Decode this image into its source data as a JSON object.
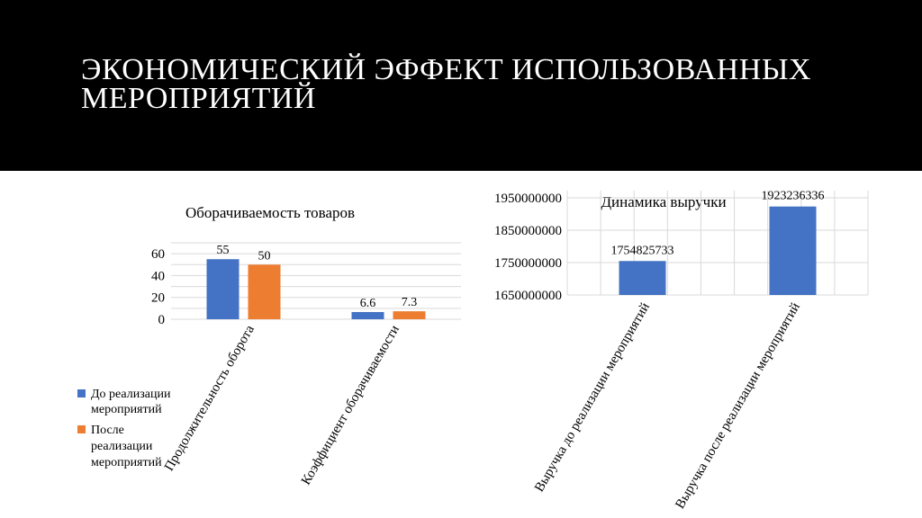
{
  "slide": {
    "title_line1": "ЭКОНОМИЧЕСКИЙ ЭФФЕКТ ИСПОЛЬЗОВАННЫХ",
    "title_line2": "МЕРОПРИЯТИЙ",
    "header_color": "#000000"
  },
  "chart_data": [
    {
      "type": "bar",
      "title": "Оборачиваемость товаров",
      "categories": [
        "Продолжительность оборота",
        "Коэффициент оборачиваемости"
      ],
      "series": [
        {
          "name": "До реализации мероприятий",
          "values": [
            55,
            6.6
          ],
          "color": "#4472C4"
        },
        {
          "name": "После реализации мероприятий",
          "values": [
            50,
            7.3
          ],
          "color": "#ED7D31"
        }
      ],
      "value_labels": [
        [
          "55",
          "6.6"
        ],
        [
          "50",
          "7.3"
        ]
      ],
      "yticks": [
        "0",
        "20",
        "40",
        "60"
      ],
      "ylim": [
        0,
        70
      ],
      "grid": true,
      "legend": "bottom-left"
    },
    {
      "type": "bar",
      "title": "Динамика выручки",
      "categories": [
        "Выручка до реализации мероприятий",
        "Выручка после реализации мероприятий"
      ],
      "series": [
        {
          "values": [
            1754825733,
            1923236336
          ],
          "color": "#4472C4"
        }
      ],
      "value_labels": [
        "1754825733",
        "1923236336"
      ],
      "yticks": [
        "1650000000",
        "1750000000",
        "1850000000",
        "1950000000"
      ],
      "ylim": [
        1650000000,
        1950000000
      ],
      "grid": true,
      "legend": "none"
    }
  ]
}
